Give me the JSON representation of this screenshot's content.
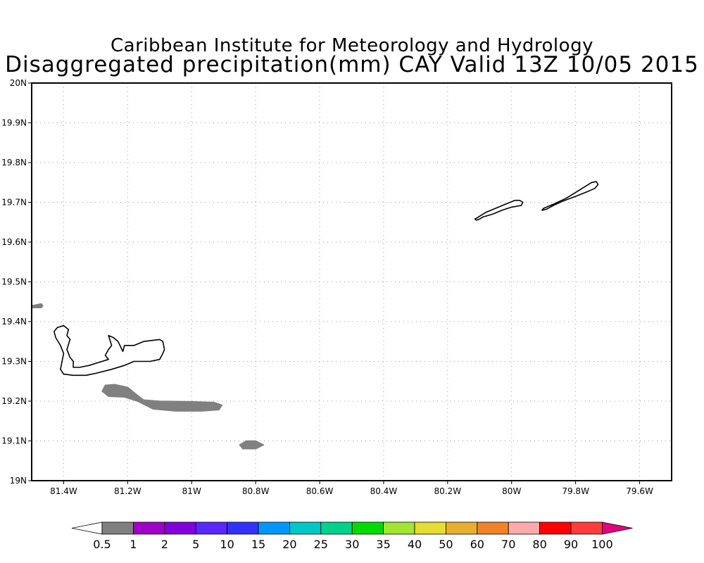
{
  "header": {
    "title_line1": "Caribbean Institute for Meteorology and Hydrology",
    "title_line2": "Disaggregated precipitation(mm) CAY Valid 13Z 10/05 2015"
  },
  "map": {
    "lon_range": [
      -81.5,
      -79.5
    ],
    "lat_range": [
      19.0,
      20.0
    ],
    "grid": true,
    "grid_style": "dotted",
    "lon_ticks": [
      {
        "value": -81.4,
        "label": "81.4W"
      },
      {
        "value": -81.2,
        "label": "81.2W"
      },
      {
        "value": -81.0,
        "label": "81W"
      },
      {
        "value": -80.8,
        "label": "80.8W"
      },
      {
        "value": -80.6,
        "label": "80.6W"
      },
      {
        "value": -80.4,
        "label": "80.4W"
      },
      {
        "value": -80.2,
        "label": "80.2W"
      },
      {
        "value": -80.0,
        "label": "80W"
      },
      {
        "value": -79.8,
        "label": "79.8W"
      },
      {
        "value": -79.6,
        "label": "79.6W"
      }
    ],
    "lat_ticks": [
      {
        "value": 19.0,
        "label": "19N"
      },
      {
        "value": 19.1,
        "label": "19.1N"
      },
      {
        "value": 19.2,
        "label": "19.2N"
      },
      {
        "value": 19.3,
        "label": "19.3N"
      },
      {
        "value": 19.4,
        "label": "19.4N"
      },
      {
        "value": 19.5,
        "label": "19.5N"
      },
      {
        "value": 19.6,
        "label": "19.6N"
      },
      {
        "value": 19.7,
        "label": "19.7N"
      },
      {
        "value": 19.8,
        "label": "19.8N"
      },
      {
        "value": 19.9,
        "label": "19.9N"
      },
      {
        "value": 20.0,
        "label": "20N"
      }
    ],
    "precip_color": "#808080",
    "precip_areas": [
      {
        "name": "precip-area-west-edge",
        "class": "0.5-1",
        "lonlat": [
          [
            -81.5,
            19.44
          ],
          [
            -81.47,
            19.445
          ],
          [
            -81.465,
            19.44
          ],
          [
            -81.47,
            19.435
          ],
          [
            -81.5,
            19.435
          ]
        ]
      },
      {
        "name": "precip-area-south-of-grand-cayman",
        "class": "0.5-1",
        "lonlat": [
          [
            -81.28,
            19.225
          ],
          [
            -81.27,
            19.24
          ],
          [
            -81.24,
            19.242
          ],
          [
            -81.2,
            19.235
          ],
          [
            -81.17,
            19.215
          ],
          [
            -81.15,
            19.203
          ],
          [
            -81.1,
            19.2
          ],
          [
            -81.0,
            19.199
          ],
          [
            -80.93,
            19.197
          ],
          [
            -80.905,
            19.19
          ],
          [
            -80.915,
            19.178
          ],
          [
            -80.97,
            19.175
          ],
          [
            -81.05,
            19.175
          ],
          [
            -81.12,
            19.18
          ],
          [
            -81.17,
            19.2
          ],
          [
            -81.21,
            19.21
          ],
          [
            -81.26,
            19.212
          ]
        ]
      },
      {
        "name": "precip-area-south-small",
        "class": "0.5-1",
        "lonlat": [
          [
            -80.85,
            19.09
          ],
          [
            -80.83,
            19.1
          ],
          [
            -80.8,
            19.1
          ],
          [
            -80.775,
            19.09
          ],
          [
            -80.8,
            19.08
          ],
          [
            -80.84,
            19.08
          ]
        ]
      }
    ],
    "coastlines": [
      {
        "name": "grand-cayman-coastline",
        "lonlat": [
          [
            -81.42,
            19.385
          ],
          [
            -81.4,
            19.39
          ],
          [
            -81.385,
            19.38
          ],
          [
            -81.39,
            19.365
          ],
          [
            -81.38,
            19.355
          ],
          [
            -81.39,
            19.33
          ],
          [
            -81.38,
            19.31
          ],
          [
            -81.37,
            19.3
          ],
          [
            -81.37,
            19.285
          ],
          [
            -81.35,
            19.285
          ],
          [
            -81.32,
            19.29
          ],
          [
            -81.28,
            19.3
          ],
          [
            -81.26,
            19.305
          ],
          [
            -81.27,
            19.315
          ],
          [
            -81.26,
            19.33
          ],
          [
            -81.25,
            19.34
          ],
          [
            -81.26,
            19.365
          ],
          [
            -81.245,
            19.36
          ],
          [
            -81.23,
            19.35
          ],
          [
            -81.215,
            19.325
          ],
          [
            -81.21,
            19.34
          ],
          [
            -81.18,
            19.34
          ],
          [
            -81.15,
            19.35
          ],
          [
            -81.1,
            19.355
          ],
          [
            -81.09,
            19.35
          ],
          [
            -81.085,
            19.33
          ],
          [
            -81.09,
            19.32
          ],
          [
            -81.1,
            19.305
          ],
          [
            -81.13,
            19.3
          ],
          [
            -81.18,
            19.3
          ],
          [
            -81.21,
            19.29
          ],
          [
            -81.25,
            19.28
          ],
          [
            -81.3,
            19.27
          ],
          [
            -81.33,
            19.265
          ],
          [
            -81.37,
            19.265
          ],
          [
            -81.4,
            19.268
          ],
          [
            -81.41,
            19.28
          ],
          [
            -81.405,
            19.3
          ],
          [
            -81.4,
            19.32
          ],
          [
            -81.41,
            19.34
          ],
          [
            -81.425,
            19.36
          ],
          [
            -81.43,
            19.375
          ]
        ]
      },
      {
        "name": "little-cayman-coastline",
        "lonlat": [
          [
            -80.11,
            19.66
          ],
          [
            -80.08,
            19.675
          ],
          [
            -80.05,
            19.685
          ],
          [
            -80.02,
            19.695
          ],
          [
            -79.99,
            19.705
          ],
          [
            -79.975,
            19.705
          ],
          [
            -79.965,
            19.7
          ],
          [
            -79.97,
            19.692
          ],
          [
            -80.0,
            19.688
          ],
          [
            -80.03,
            19.68
          ],
          [
            -80.06,
            19.67
          ],
          [
            -80.09,
            19.663
          ],
          [
            -80.1,
            19.658
          ],
          [
            -80.11,
            19.655
          ],
          [
            -80.115,
            19.658
          ]
        ]
      },
      {
        "name": "cayman-brac-coastline",
        "lonlat": [
          [
            -79.9,
            19.685
          ],
          [
            -79.87,
            19.695
          ],
          [
            -79.83,
            19.71
          ],
          [
            -79.8,
            19.725
          ],
          [
            -79.77,
            19.74
          ],
          [
            -79.75,
            19.75
          ],
          [
            -79.735,
            19.752
          ],
          [
            -79.73,
            19.745
          ],
          [
            -79.74,
            19.735
          ],
          [
            -79.76,
            19.728
          ],
          [
            -79.8,
            19.715
          ],
          [
            -79.84,
            19.703
          ],
          [
            -79.87,
            19.692
          ],
          [
            -79.89,
            19.683
          ],
          [
            -79.905,
            19.68
          ]
        ]
      }
    ]
  },
  "colorbar": {
    "min_arrow_color": "#ffffff",
    "max_arrow_color": "#e6007e",
    "colors": [
      "#808080",
      "#a000c8",
      "#8200dc",
      "#5a28ff",
      "#3232ff",
      "#0096ff",
      "#00c8c8",
      "#00d28c",
      "#00dc00",
      "#a0e632",
      "#e6dc32",
      "#e6af2d",
      "#f08228",
      "#ffaaaa",
      "#ff0000",
      "#ff3c3c"
    ],
    "labels": [
      "0.5",
      "1",
      "2",
      "5",
      "10",
      "15",
      "20",
      "25",
      "30",
      "35",
      "40",
      "50",
      "60",
      "70",
      "80",
      "90",
      "100"
    ]
  }
}
